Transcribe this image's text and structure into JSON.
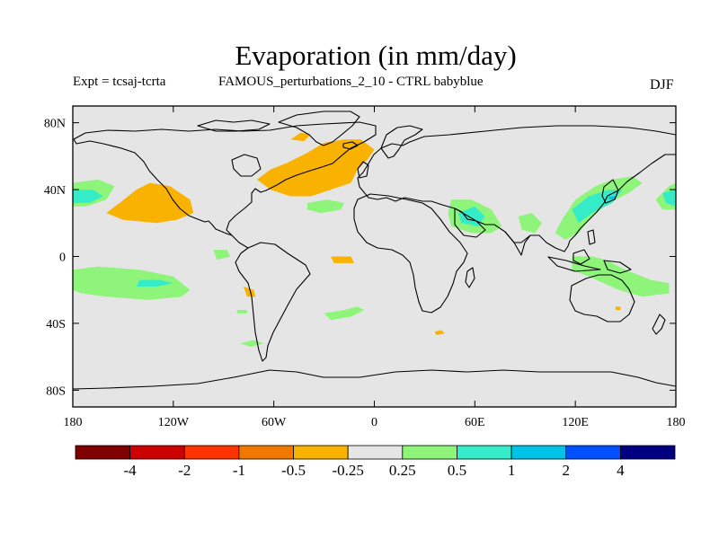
{
  "header": {
    "title": "Evaporation (in mm/day)",
    "expt": "Expt = tcsaj-tcrta",
    "description": "FAMOUS_perturbations_2_10 - CTRL babyblue",
    "season": "DJF"
  },
  "map": {
    "lon_range": [
      -180,
      180
    ],
    "lat_range": [
      -90,
      90
    ],
    "background_color": "#e5e5e5",
    "x_ticks": [
      {
        "value": -180,
        "label": "180"
      },
      {
        "value": -120,
        "label": "120W"
      },
      {
        "value": -60,
        "label": "60W"
      },
      {
        "value": 0,
        "label": "0"
      },
      {
        "value": 60,
        "label": "60E"
      },
      {
        "value": 120,
        "label": "120E"
      },
      {
        "value": 180,
        "label": "180"
      }
    ],
    "y_ticks": [
      {
        "value": 80,
        "label": "80N"
      },
      {
        "value": 40,
        "label": "40N"
      },
      {
        "value": 0,
        "label": "0"
      },
      {
        "value": -40,
        "label": "40S"
      },
      {
        "value": -80,
        "label": "80S"
      }
    ],
    "anomaly_regions": [
      {
        "level": "-0.5",
        "color": "#f08a1c",
        "polygon": [
          [
            -58,
            46
          ],
          [
            -56,
            50
          ],
          [
            -50,
            50
          ],
          [
            -40,
            46
          ],
          [
            -30,
            46
          ],
          [
            -38,
            40
          ],
          [
            -50,
            38
          ],
          [
            -58,
            42
          ]
        ]
      },
      {
        "level": "-0.5",
        "color": "#f08a1c",
        "polygon": [
          [
            -32,
            66
          ],
          [
            -20,
            68
          ],
          [
            -8,
            66
          ],
          [
            -6,
            60
          ],
          [
            -12,
            56
          ],
          [
            -22,
            56
          ],
          [
            -30,
            60
          ]
        ]
      },
      {
        "level": "-0.25",
        "color": "#f9b200",
        "polygon": [
          [
            -70,
            46
          ],
          [
            -62,
            52
          ],
          [
            -52,
            56
          ],
          [
            -40,
            62
          ],
          [
            -30,
            68
          ],
          [
            -18,
            70
          ],
          [
            -8,
            70
          ],
          [
            0,
            64
          ],
          [
            -4,
            58
          ],
          [
            -10,
            52
          ],
          [
            -14,
            44
          ],
          [
            -26,
            40
          ],
          [
            -38,
            36
          ],
          [
            -50,
            36
          ],
          [
            -62,
            40
          ]
        ]
      },
      {
        "level": "-0.25",
        "color": "#f9b200",
        "polygon": [
          [
            -50,
            70
          ],
          [
            -44,
            74
          ],
          [
            -38,
            73
          ],
          [
            -42,
            69
          ]
        ]
      },
      {
        "level": "-0.25",
        "color": "#f9b200",
        "polygon": [
          [
            -160,
            26
          ],
          [
            -150,
            22
          ],
          [
            -130,
            20
          ],
          [
            -118,
            22
          ],
          [
            -108,
            26
          ],
          [
            -110,
            34
          ],
          [
            -122,
            42
          ],
          [
            -134,
            44
          ],
          [
            -142,
            40
          ],
          [
            -152,
            32
          ]
        ]
      },
      {
        "level": "-0.25",
        "color": "#f9b200",
        "polygon": [
          [
            -78,
            -18
          ],
          [
            -72,
            -20
          ],
          [
            -71,
            -24
          ],
          [
            -76,
            -24
          ]
        ]
      },
      {
        "level": "-0.25",
        "color": "#f9b200",
        "polygon": [
          [
            -26,
            0
          ],
          [
            -14,
            0
          ],
          [
            -12,
            -4
          ],
          [
            -24,
            -4
          ]
        ]
      },
      {
        "level": "-0.25",
        "color": "#f9b200",
        "polygon": [
          [
            36,
            -45
          ],
          [
            40,
            -44
          ],
          [
            42,
            -46
          ],
          [
            37,
            -47
          ]
        ]
      },
      {
        "level": "-0.25",
        "color": "#f9b200",
        "polygon": [
          [
            144,
            -30
          ],
          [
            147,
            -30
          ],
          [
            147,
            -32
          ],
          [
            144,
            -32
          ]
        ]
      },
      {
        "level": "0.25",
        "color": "#8ef47a",
        "polygon": [
          [
            -180,
            44
          ],
          [
            -165,
            46
          ],
          [
            -155,
            42
          ],
          [
            -160,
            34
          ],
          [
            -172,
            30
          ],
          [
            -180,
            30
          ]
        ]
      },
      {
        "level": "0.25",
        "color": "#8ef47a",
        "polygon": [
          [
            -180,
            -8
          ],
          [
            -165,
            -6
          ],
          [
            -140,
            -8
          ],
          [
            -120,
            -12
          ],
          [
            -110,
            -20
          ],
          [
            -115,
            -24
          ],
          [
            -135,
            -26
          ],
          [
            -160,
            -24
          ],
          [
            -175,
            -22
          ],
          [
            -180,
            -20
          ]
        ]
      },
      {
        "level": "0.25",
        "color": "#8ef47a",
        "polygon": [
          [
            -96,
            4
          ],
          [
            -88,
            4
          ],
          [
            -86,
            0
          ],
          [
            -94,
            -2
          ]
        ]
      },
      {
        "level": "0.25",
        "color": "#8ef47a",
        "polygon": [
          [
            -40,
            32
          ],
          [
            -28,
            34
          ],
          [
            -18,
            32
          ],
          [
            -20,
            28
          ],
          [
            -32,
            26
          ],
          [
            -40,
            28
          ]
        ]
      },
      {
        "level": "0.25",
        "color": "#8ef47a",
        "polygon": [
          [
            -30,
            -34
          ],
          [
            -18,
            -32
          ],
          [
            -10,
            -30
          ],
          [
            -6,
            -32
          ],
          [
            -14,
            -36
          ],
          [
            -26,
            -38
          ]
        ]
      },
      {
        "level": "0.25",
        "color": "#8ef47a",
        "polygon": [
          [
            46,
            34
          ],
          [
            58,
            34
          ],
          [
            70,
            28
          ],
          [
            76,
            18
          ],
          [
            70,
            14
          ],
          [
            58,
            14
          ],
          [
            46,
            18
          ],
          [
            44,
            26
          ]
        ]
      },
      {
        "level": "0.25",
        "color": "#8ef47a",
        "polygon": [
          [
            86,
            24
          ],
          [
            94,
            26
          ],
          [
            100,
            20
          ],
          [
            96,
            14
          ],
          [
            88,
            16
          ]
        ]
      },
      {
        "level": "0.25",
        "color": "#8ef47a",
        "polygon": [
          [
            112,
            22
          ],
          [
            120,
            34
          ],
          [
            132,
            42
          ],
          [
            142,
            46
          ],
          [
            154,
            48
          ],
          [
            160,
            44
          ],
          [
            152,
            38
          ],
          [
            140,
            32
          ],
          [
            130,
            24
          ],
          [
            122,
            14
          ],
          [
            114,
            10
          ],
          [
            108,
            14
          ]
        ]
      },
      {
        "level": "0.25",
        "color": "#8ef47a",
        "polygon": [
          [
            118,
            0
          ],
          [
            130,
            0
          ],
          [
            138,
            -2
          ],
          [
            150,
            -8
          ],
          [
            165,
            -14
          ],
          [
            176,
            -16
          ],
          [
            176,
            -22
          ],
          [
            160,
            -24
          ],
          [
            146,
            -20
          ],
          [
            128,
            -12
          ],
          [
            118,
            -8
          ]
        ]
      },
      {
        "level": "0.25",
        "color": "#8ef47a",
        "polygon": [
          [
            168,
            34
          ],
          [
            176,
            42
          ],
          [
            180,
            44
          ],
          [
            180,
            28
          ],
          [
            172,
            28
          ]
        ]
      },
      {
        "level": "0.25",
        "color": "#8ef47a",
        "polygon": [
          [
            -82,
            -32
          ],
          [
            -76,
            -32
          ],
          [
            -76,
            -34
          ],
          [
            -82,
            -34
          ]
        ]
      },
      {
        "level": "0.25",
        "color": "#8ef47a",
        "polygon": [
          [
            -80,
            -52
          ],
          [
            -72,
            -50
          ],
          [
            -66,
            -52
          ],
          [
            -74,
            -54
          ]
        ]
      },
      {
        "level": "0.5",
        "color": "#34ecc8",
        "polygon": [
          [
            -180,
            40
          ],
          [
            -168,
            40
          ],
          [
            -162,
            36
          ],
          [
            -170,
            32
          ],
          [
            -180,
            32
          ]
        ]
      },
      {
        "level": "0.5",
        "color": "#34ecc8",
        "polygon": [
          [
            -140,
            -14
          ],
          [
            -128,
            -14
          ],
          [
            -120,
            -16
          ],
          [
            -130,
            -18
          ],
          [
            -142,
            -18
          ]
        ]
      },
      {
        "level": "0.5",
        "color": "#34ecc8",
        "polygon": [
          [
            50,
            26
          ],
          [
            60,
            30
          ],
          [
            66,
            24
          ],
          [
            62,
            18
          ],
          [
            52,
            20
          ]
        ]
      },
      {
        "level": "0.5",
        "color": "#34ecc8",
        "polygon": [
          [
            118,
            28
          ],
          [
            128,
            36
          ],
          [
            140,
            40
          ],
          [
            148,
            40
          ],
          [
            142,
            32
          ],
          [
            130,
            26
          ],
          [
            122,
            20
          ]
        ]
      },
      {
        "level": "0.5",
        "color": "#34ecc8",
        "polygon": [
          [
            172,
            38
          ],
          [
            180,
            40
          ],
          [
            180,
            30
          ],
          [
            174,
            32
          ]
        ]
      },
      {
        "level": "1",
        "color": "#00c3e8",
        "polygon": [
          [
            140,
            36
          ],
          [
            144,
            36
          ],
          [
            144,
            34
          ],
          [
            140,
            34
          ]
        ]
      }
    ]
  },
  "colorbar": {
    "colors": [
      "#800000",
      "#cc0000",
      "#ff3300",
      "#f07800",
      "#f9b200",
      "#e5e5e5",
      "#8ef47a",
      "#34ecc8",
      "#00c3e8",
      "#0050ff",
      "#000080"
    ],
    "labels": [
      "-4",
      "-2",
      "-1",
      "-0.5",
      "-0.25",
      "0.25",
      "0.5",
      "1",
      "2",
      "4"
    ]
  }
}
